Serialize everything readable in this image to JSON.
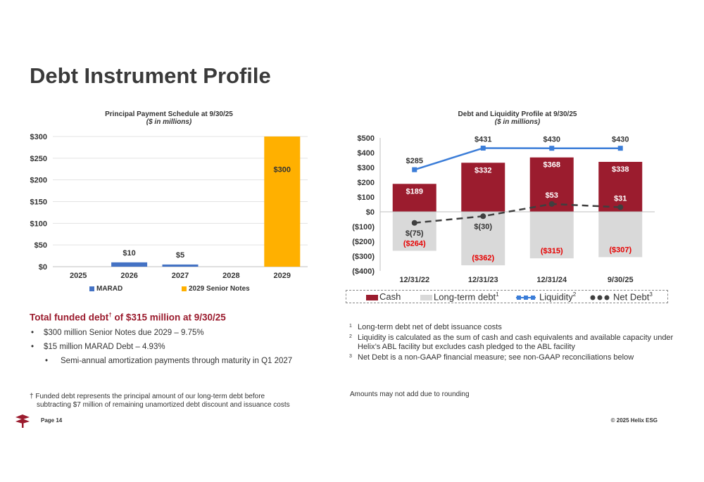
{
  "page": {
    "title": "Debt Instrument Profile",
    "page_label": "Page 14",
    "copyright": "© 2025 Helix ESG"
  },
  "colors": {
    "marad": "#4472c4",
    "senior_notes": "#ffb000",
    "cash": "#9b1c2e",
    "long_term_debt": "#d9d9d9",
    "liquidity": "#3b7dd8",
    "net_debt": "#3f3f3f",
    "negative_label": "#e60000",
    "accent_red": "#9b1c2e"
  },
  "chart_data": [
    {
      "type": "bar",
      "title": "Principal Payment Schedule at 9/30/25",
      "subtitle": "($ in millions)",
      "categories": [
        "2025",
        "2026",
        "2027",
        "2028",
        "2029"
      ],
      "series": [
        {
          "name": "MARAD",
          "values": [
            0,
            10,
            5,
            0,
            0
          ]
        },
        {
          "name": "2029 Senior Notes",
          "values": [
            0,
            0,
            0,
            0,
            300
          ]
        }
      ],
      "data_labels": [
        {
          "category": "2026",
          "text": "$10"
        },
        {
          "category": "2027",
          "text": "$5"
        },
        {
          "category": "2029",
          "text": "$300"
        }
      ],
      "y_ticks": [
        0,
        50,
        100,
        150,
        200,
        250,
        300
      ],
      "y_tick_labels": [
        "$0",
        "$50",
        "$100",
        "$150",
        "$200",
        "$250",
        "$300"
      ],
      "ylim": [
        0,
        300
      ],
      "grid": true,
      "legend": "bottom"
    },
    {
      "type": "bar",
      "title": "Debt and Liquidity Profile at 9/30/25",
      "subtitle": "($ in millions)",
      "categories": [
        "12/31/22",
        "12/31/23",
        "12/31/24",
        "9/30/25"
      ],
      "series": [
        {
          "name": "Cash",
          "chart": "bar",
          "values": [
            189,
            332,
            368,
            338
          ],
          "labels": [
            "$189",
            "$332",
            "$368",
            "$338"
          ]
        },
        {
          "name": "Long-term debt",
          "name_superscript": "1",
          "chart": "bar",
          "values": [
            -264,
            -362,
            -315,
            -307
          ],
          "labels": [
            "($264)",
            "($362)",
            "($315)",
            "($307)"
          ]
        },
        {
          "name": "Liquidity",
          "name_superscript": "2",
          "chart": "line",
          "values": [
            285,
            431,
            430,
            430
          ],
          "labels": [
            "$285",
            "$431",
            "$430",
            "$430"
          ]
        },
        {
          "name": "Net Debt",
          "name_superscript": "3",
          "chart": "line",
          "values": [
            -75,
            -30,
            53,
            31
          ],
          "labels": [
            "$(75)",
            "$(30)",
            "$53",
            "$31"
          ]
        }
      ],
      "y_ticks": [
        -400,
        -300,
        -200,
        -100,
        0,
        100,
        200,
        300,
        400,
        500
      ],
      "y_tick_labels": [
        "($400)",
        "($300)",
        "($200)",
        "($100)",
        "$0",
        "$100",
        "$200",
        "$300",
        "$400",
        "$500"
      ],
      "ylim": [
        -400,
        500
      ],
      "grid": false,
      "legend": "bottom"
    }
  ],
  "summary": {
    "heading_prefix": "Total funded debt",
    "heading_mark": "†",
    "heading_suffix": " of $315 million at 9/30/25",
    "bullets": [
      "$300 million Senior Notes due 2029 – 9.75%",
      "$15 million MARAD Debt – 4.93%"
    ],
    "sub_bullets": [
      "Semi-annual amortization payments through maturity in Q1 2027"
    ]
  },
  "dagger_note": {
    "line1": "† Funded debt represents the principal amount of our long-term debt before",
    "line2": "subtracting $7 million of remaining unamortized debt discount and issuance costs"
  },
  "footnotes": [
    {
      "num": "1",
      "text": "Long-term debt net of debt issuance costs"
    },
    {
      "num": "2",
      "text": "Liquidity is calculated as the sum of cash and cash equivalents and available capacity under Helix’s ABL facility but excludes cash pledged to the ABL facility"
    },
    {
      "num": "3",
      "text": "Net Debt is a non-GAAP financial measure; see non-GAAP reconciliations below"
    }
  ],
  "amounts_note": "Amounts may not add due to rounding"
}
